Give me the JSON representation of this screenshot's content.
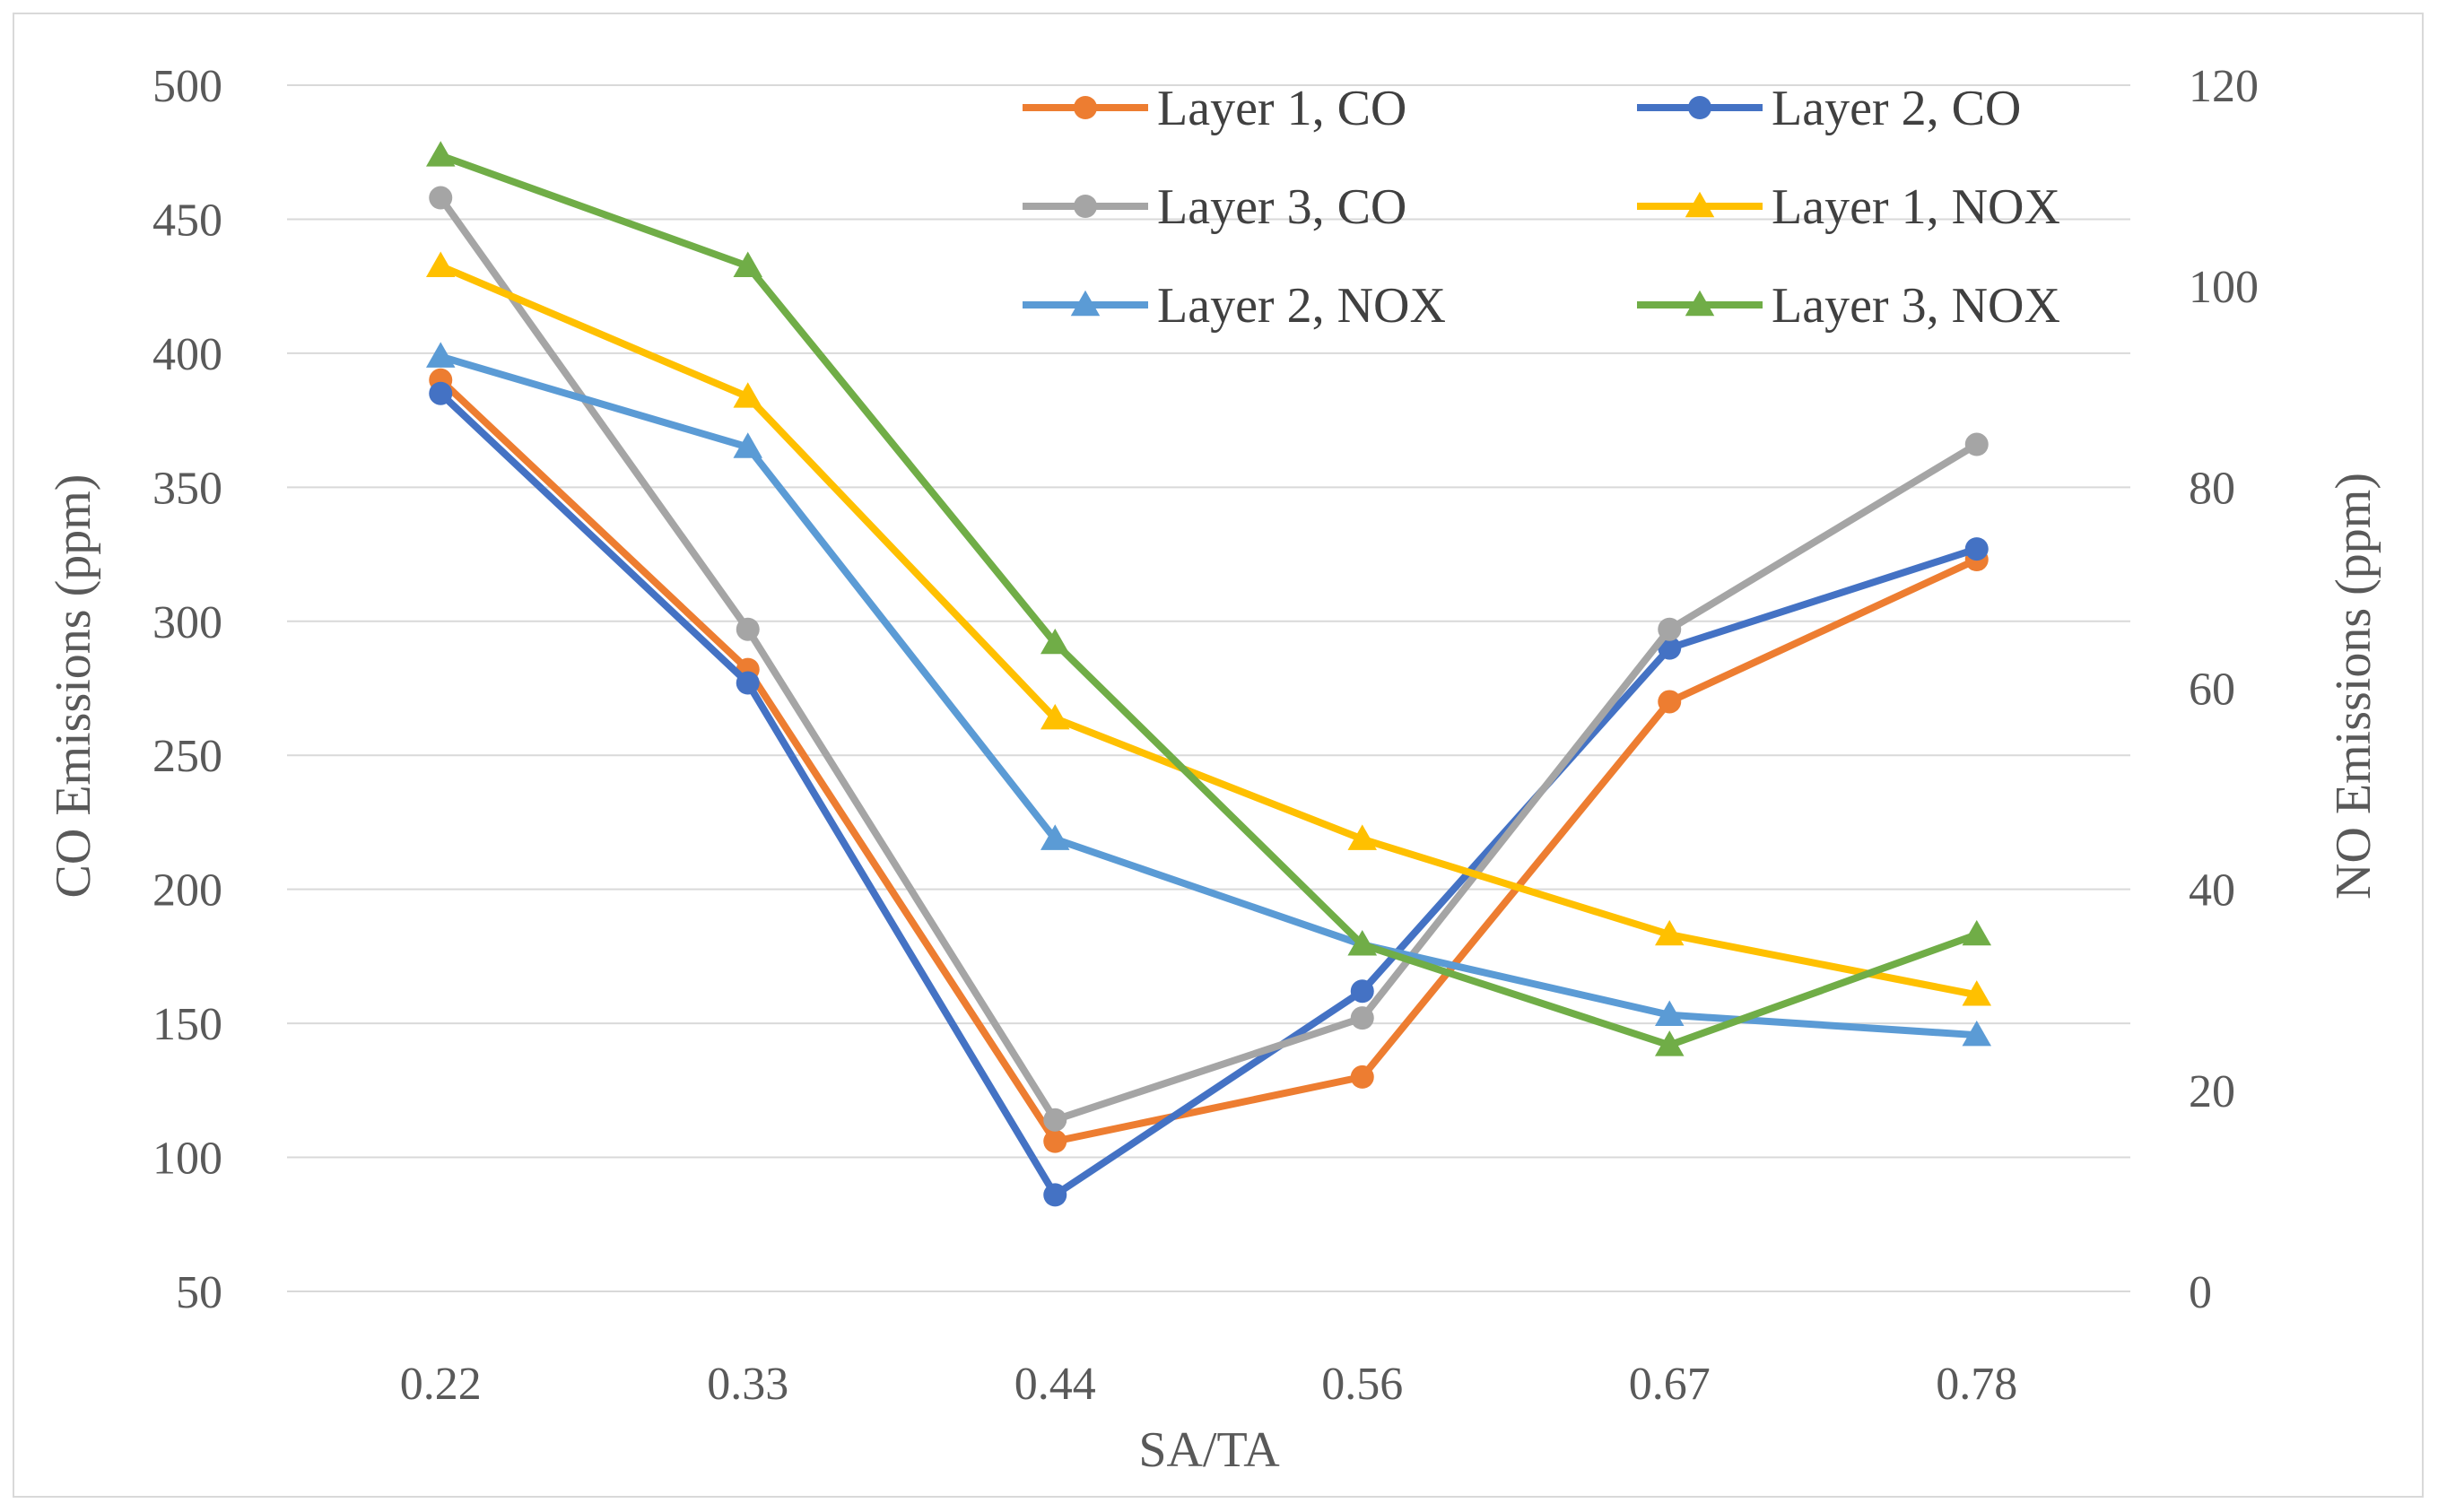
{
  "chart_data": {
    "type": "line",
    "title": "",
    "xlabel": "SA/TA",
    "ylabel": "CO Emissions (ppm)",
    "y2label": "NO Emissions (ppm)",
    "categories": [
      "0.22",
      "0.33",
      "0.44",
      "0.56",
      "0.67",
      "0.78"
    ],
    "ylim": [
      50,
      500
    ],
    "yticks": [
      "500",
      "450",
      "400",
      "350",
      "300",
      "250",
      "200",
      "150",
      "100",
      "50"
    ],
    "y2lim": [
      0,
      120
    ],
    "y2ticks": [
      "120",
      "100",
      "80",
      "60",
      "40",
      "20",
      "0"
    ],
    "grid": true,
    "legend_position": "top-right",
    "series": [
      {
        "name": "Layer 1, CO",
        "axis": "left",
        "color": "#ED7D31",
        "marker": "circle",
        "values": [
          390,
          282,
          106,
          130,
          270,
          323
        ]
      },
      {
        "name": "Layer 2, CO",
        "axis": "left",
        "color": "#4472C4",
        "marker": "circle",
        "values": [
          385,
          277,
          86,
          162,
          290,
          327
        ]
      },
      {
        "name": "Layer 3, CO",
        "axis": "left",
        "color": "#A5A5A5",
        "marker": "circle",
        "values": [
          458,
          297,
          114,
          152,
          297,
          366
        ]
      },
      {
        "name": "Layer 1, NOX",
        "axis": "right",
        "color": "#FFC000",
        "marker": "triangle",
        "values": [
          102,
          89,
          57,
          45,
          35.5,
          29.5
        ]
      },
      {
        "name": "Layer 2, NOX",
        "axis": "right",
        "color": "#5B9BD5",
        "marker": "triangle",
        "values": [
          93,
          84,
          45,
          34.5,
          27.5,
          25.5
        ]
      },
      {
        "name": "Layer 3, NOX",
        "axis": "right",
        "color": "#70AD47",
        "marker": "triangle",
        "values": [
          113,
          102,
          64.5,
          34.5,
          24.5,
          35.5
        ]
      }
    ]
  }
}
